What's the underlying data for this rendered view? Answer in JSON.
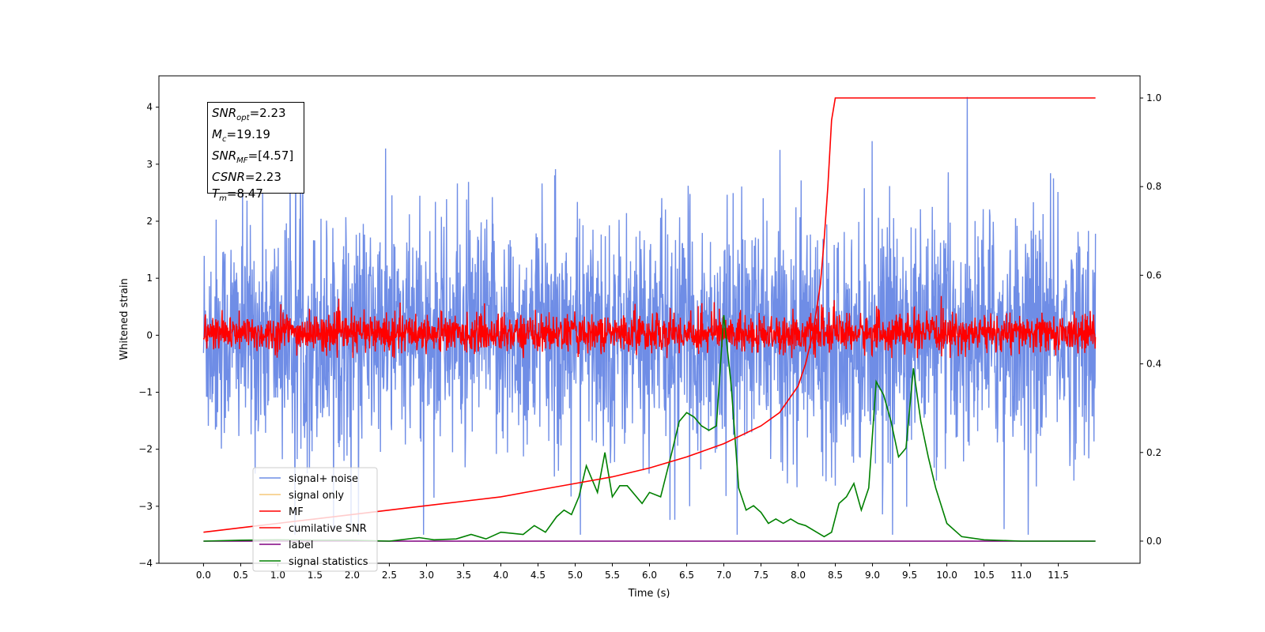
{
  "chart_data": {
    "type": "line",
    "title": "",
    "xlabel": "Time (s)",
    "ylabel": "Whitened strain",
    "ylabel_right": "",
    "xlim": [
      -0.6,
      12.6
    ],
    "ylim": [
      -4,
      4.55
    ],
    "ylim_right": [
      -0.05,
      1.05
    ],
    "x_ticks": [
      "0.0",
      "0.5",
      "1.0",
      "1.5",
      "2.0",
      "2.5",
      "3.0",
      "3.5",
      "4.0",
      "4.5",
      "5.0",
      "5.5",
      "6.0",
      "6.5",
      "7.0",
      "7.5",
      "8.0",
      "8.5",
      "9.0",
      "9.5",
      "10.0",
      "10.5",
      "11.0",
      "11.5"
    ],
    "x_tick_values": [
      0,
      0.5,
      1,
      1.5,
      2,
      2.5,
      3,
      3.5,
      4,
      4.5,
      5,
      5.5,
      6,
      6.5,
      7,
      7.5,
      8,
      8.5,
      9,
      9.5,
      10,
      10.5,
      11,
      11.5
    ],
    "y_ticks": [
      "−4",
      "−3",
      "−2",
      "−1",
      "0",
      "1",
      "2",
      "3",
      "4"
    ],
    "y_tick_values": [
      -4,
      -3,
      -2,
      -1,
      0,
      1,
      2,
      3,
      4
    ],
    "y_right_ticks": [
      "0.0",
      "0.2",
      "0.4",
      "0.6",
      "0.8",
      "1.0"
    ],
    "y_right_tick_values": [
      0,
      0.2,
      0.4,
      0.6,
      0.8,
      1.0
    ],
    "grid": false,
    "legend_position": "lower-left",
    "colors": {
      "signal_noise": "#6f8de6",
      "signal_only": "#f5c97a",
      "mf": "#ff0000",
      "cumulative": "#ff0000",
      "label": "#800080",
      "stats": "#008000"
    },
    "series": [
      {
        "name": "signal+ noise",
        "axis": "left",
        "note": "noise band",
        "amplitude_range": [
          -3.5,
          4.18
        ],
        "x_range": [
          0,
          12
        ]
      },
      {
        "name": "signal only",
        "axis": "left"
      },
      {
        "name": "MF",
        "axis": "left",
        "amplitude_range": [
          -0.4,
          1.0
        ],
        "x_range": [
          0,
          12
        ]
      },
      {
        "name": "cumilative SNR",
        "axis": "right",
        "x": [
          0,
          0.5,
          1,
          1.5,
          2,
          2.5,
          3,
          3.5,
          4,
          4.5,
          5,
          5.5,
          6,
          6.5,
          7,
          7.5,
          7.75,
          8,
          8.1,
          8.2,
          8.3,
          8.35,
          8.4,
          8.45,
          8.5,
          9,
          10,
          11,
          12
        ],
        "values": [
          0.02,
          0.03,
          0.04,
          0.05,
          0.06,
          0.07,
          0.08,
          0.09,
          0.1,
          0.115,
          0.13,
          0.145,
          0.165,
          0.19,
          0.22,
          0.26,
          0.29,
          0.35,
          0.4,
          0.47,
          0.58,
          0.68,
          0.8,
          0.95,
          1.0,
          1.0,
          1.0,
          1.0,
          1.0
        ]
      },
      {
        "name": "label",
        "axis": "right",
        "x": [
          0,
          12
        ],
        "values": [
          0,
          0
        ]
      },
      {
        "name": "signal statistics",
        "axis": "right",
        "x": [
          0,
          0.5,
          1,
          1.5,
          2,
          2.5,
          2.9,
          3.1,
          3.4,
          3.6,
          3.8,
          4.0,
          4.3,
          4.45,
          4.6,
          4.75,
          4.85,
          4.95,
          5.05,
          5.15,
          5.3,
          5.4,
          5.5,
          5.6,
          5.7,
          5.9,
          6.0,
          6.15,
          6.3,
          6.4,
          6.5,
          6.6,
          6.7,
          6.8,
          6.9,
          7.0,
          7.1,
          7.2,
          7.3,
          7.4,
          7.5,
          7.6,
          7.7,
          7.8,
          7.9,
          8.0,
          8.1,
          8.25,
          8.35,
          8.45,
          8.55,
          8.65,
          8.75,
          8.85,
          8.95,
          9.05,
          9.15,
          9.25,
          9.35,
          9.45,
          9.55,
          9.65,
          9.75,
          9.85,
          10.0,
          10.2,
          10.5,
          11,
          11.5,
          12
        ],
        "values": [
          0,
          0.002,
          0.003,
          0.002,
          0.002,
          0,
          0.008,
          0.003,
          0.005,
          0.015,
          0.005,
          0.02,
          0.015,
          0.035,
          0.02,
          0.055,
          0.07,
          0.06,
          0.1,
          0.17,
          0.11,
          0.2,
          0.1,
          0.125,
          0.125,
          0.085,
          0.11,
          0.1,
          0.2,
          0.27,
          0.29,
          0.28,
          0.26,
          0.25,
          0.26,
          0.51,
          0.35,
          0.12,
          0.07,
          0.08,
          0.065,
          0.04,
          0.05,
          0.04,
          0.05,
          0.04,
          0.035,
          0.02,
          0.01,
          0.02,
          0.085,
          0.1,
          0.13,
          0.07,
          0.12,
          0.36,
          0.33,
          0.27,
          0.19,
          0.21,
          0.39,
          0.27,
          0.19,
          0.12,
          0.04,
          0.01,
          0.003,
          0,
          0,
          0
        ]
      }
    ]
  },
  "info_box": {
    "lines": [
      {
        "sym": "SNR",
        "sub": "opt",
        "value": "=2.23"
      },
      {
        "sym": "M",
        "sub": "c",
        "value": "=19.19"
      },
      {
        "sym": "SNR",
        "sub": "MF",
        "value": "=[4.57]"
      },
      {
        "sym": "CSNR",
        "sub": "",
        "value": "=2.23"
      },
      {
        "sym": "T",
        "sub": "m",
        "value": "=8.47"
      }
    ]
  }
}
